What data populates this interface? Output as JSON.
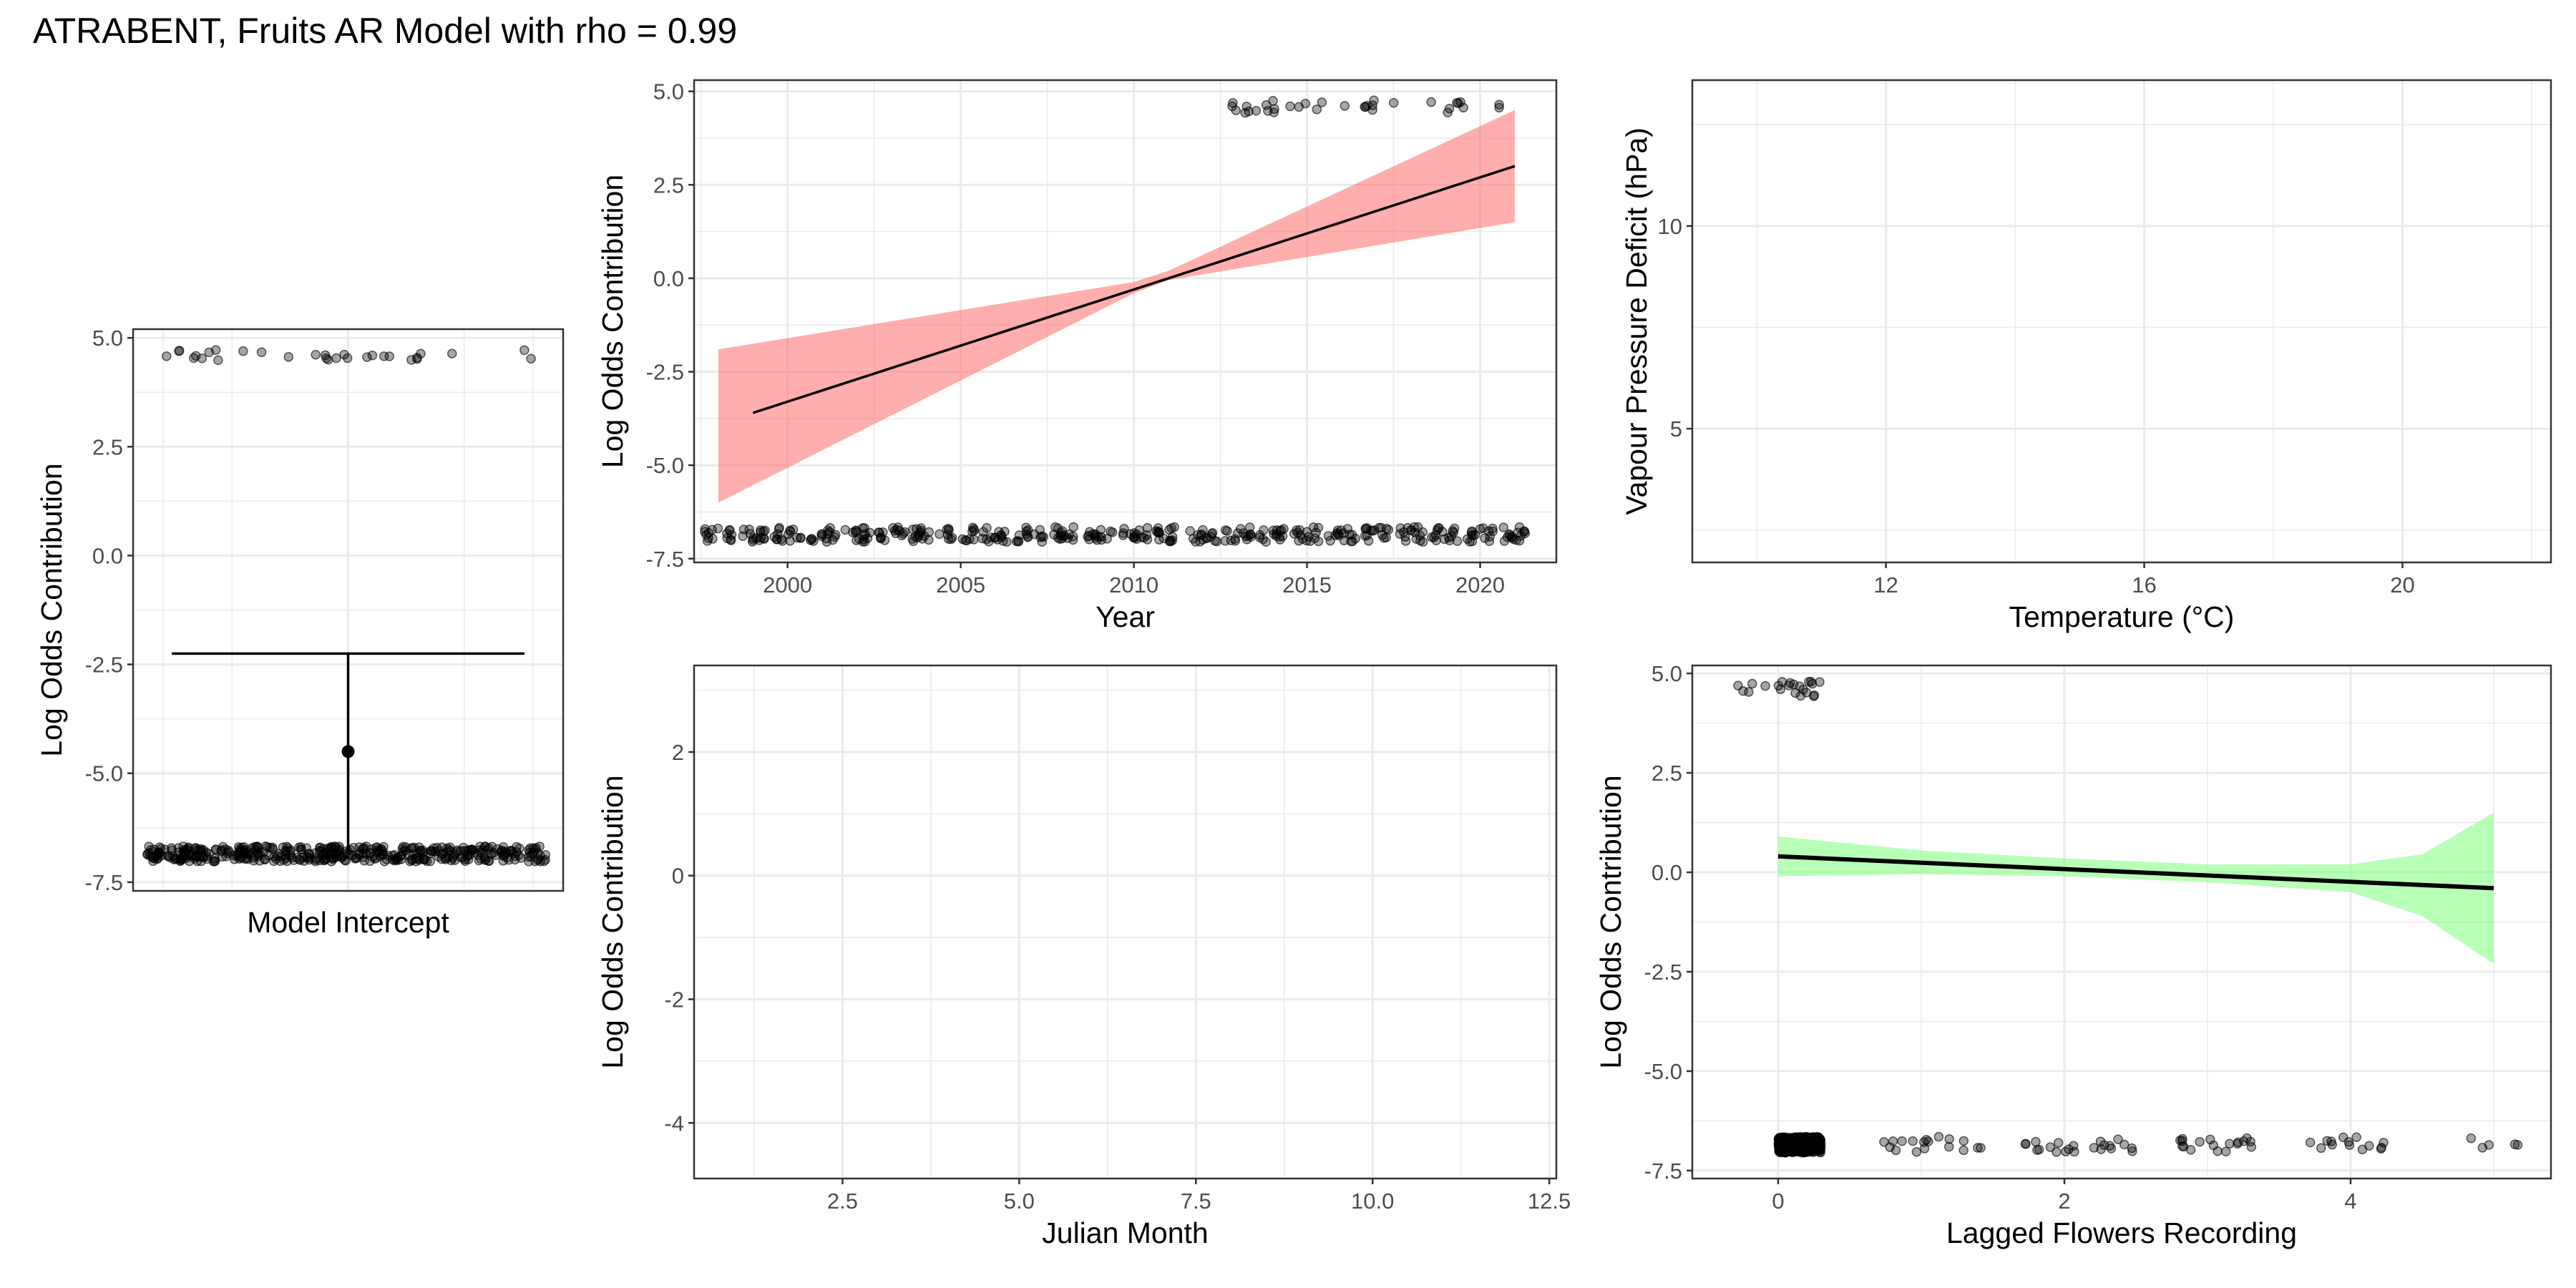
{
  "title": "ATRABENT, Fruits AR Model with rho = 0.99",
  "chart_data": [
    {
      "id": "intercept",
      "type": "errorbar",
      "xlabel": "Model Intercept",
      "ylabel": "Log Odds Contribution",
      "ylim": [
        -7.7,
        5.2
      ],
      "yticks": [
        5.0,
        2.5,
        0.0,
        -2.5,
        -5.0,
        -7.5
      ],
      "ytick_labels": [
        "5.0",
        "2.5",
        "0.0",
        "-2.5",
        "-5.0",
        "-7.5"
      ],
      "estimate": -4.5,
      "ci": [
        -6.8,
        -2.25
      ],
      "jitter_bands": [
        4.6,
        -6.85
      ],
      "grid": true
    },
    {
      "id": "year",
      "type": "line",
      "xlabel": "Year",
      "ylabel": "Log Odds Contribution",
      "xlim": [
        1997.3,
        2022.2
      ],
      "ylim": [
        -7.6,
        5.3
      ],
      "xticks": [
        2000,
        2005,
        2010,
        2015,
        2020
      ],
      "xtick_labels": [
        "2000",
        "2005",
        "2010",
        "2015",
        "2020"
      ],
      "yticks": [
        5.0,
        2.5,
        0.0,
        -2.5,
        -5.0,
        -7.5
      ],
      "ytick_labels": [
        "5.0",
        "2.5",
        "0.0",
        "-2.5",
        "-5.0",
        "-7.5"
      ],
      "line_x": [
        1999,
        2021
      ],
      "line_y": [
        -3.6,
        3.0
      ],
      "ribbon_x": [
        1998,
        2010,
        2011,
        2021
      ],
      "ribbon_lower": [
        -6.0,
        -0.4,
        -0.05,
        1.5
      ],
      "ribbon_upper": [
        -1.9,
        -0.1,
        0.2,
        4.5
      ],
      "ribbon_color": "#ff6b6b",
      "points_top_x_range": [
        2012.8,
        2021
      ],
      "points_bottom_x_range": [
        1998,
        2021
      ],
      "grid": true
    },
    {
      "id": "vpd",
      "type": "scatter",
      "xlabel": "Temperature (°C)",
      "ylabel": "Vapour Pressure Deficit (hPa)",
      "xlim": [
        9,
        22.3
      ],
      "ylim": [
        1.7,
        13.6
      ],
      "xticks": [
        12,
        16,
        20
      ],
      "xtick_labels": [
        "12",
        "16",
        "20"
      ],
      "yticks": [
        5,
        10
      ],
      "ytick_labels": [
        "5",
        "10"
      ],
      "grid": true
    },
    {
      "id": "month",
      "type": "line",
      "xlabel": "Julian Month",
      "ylabel": "Log Odds Contribution",
      "xlim": [
        0.4,
        12.6
      ],
      "ylim": [
        -4.9,
        3.4
      ],
      "xticks": [
        2.5,
        5.0,
        7.5,
        10.0,
        12.5
      ],
      "xtick_labels": [
        "2.5",
        "5.0",
        "7.5",
        "10.0",
        "12.5"
      ],
      "yticks": [
        2,
        0,
        -2,
        -4
      ],
      "ytick_labels": [
        "2",
        "0",
        "-2",
        "-4"
      ],
      "grid": true
    },
    {
      "id": "lagged",
      "type": "line",
      "xlabel": "Lagged Flowers Recording",
      "ylabel": "Log Odds Contribution",
      "xlim": [
        -0.6,
        5.4
      ],
      "ylim": [
        -7.7,
        5.2
      ],
      "xticks": [
        0,
        2,
        4
      ],
      "xtick_labels": [
        "0",
        "2",
        "4"
      ],
      "yticks": [
        5.0,
        2.5,
        0.0,
        -2.5,
        -5.0,
        -7.5
      ],
      "ytick_labels": [
        "5.0",
        "2.5",
        "0.0",
        "-2.5",
        "-5.0",
        "-7.5"
      ],
      "line_x": [
        0,
        5
      ],
      "line_y": [
        0.4,
        -0.4
      ],
      "ribbon_x": [
        0,
        1,
        2,
        3,
        4,
        4.5,
        5
      ],
      "ribbon_lower": [
        -0.1,
        -0.05,
        -0.1,
        -0.25,
        -0.5,
        -1.1,
        -2.3
      ],
      "ribbon_upper": [
        0.9,
        0.55,
        0.35,
        0.2,
        0.2,
        0.45,
        1.5
      ],
      "ribbon_color": "#7dff7d",
      "point_clusters_bottom": [
        [
          0,
          0.3,
          60
        ],
        [
          0.7,
          1.5,
          18
        ],
        [
          1.7,
          2.5,
          22
        ],
        [
          2.7,
          3.4,
          18
        ],
        [
          3.7,
          4.3,
          14
        ],
        [
          4.8,
          5.3,
          5
        ]
      ],
      "point_clusters_top": [
        [
          -0.3,
          0.3,
          22
        ]
      ],
      "grid": true
    }
  ]
}
